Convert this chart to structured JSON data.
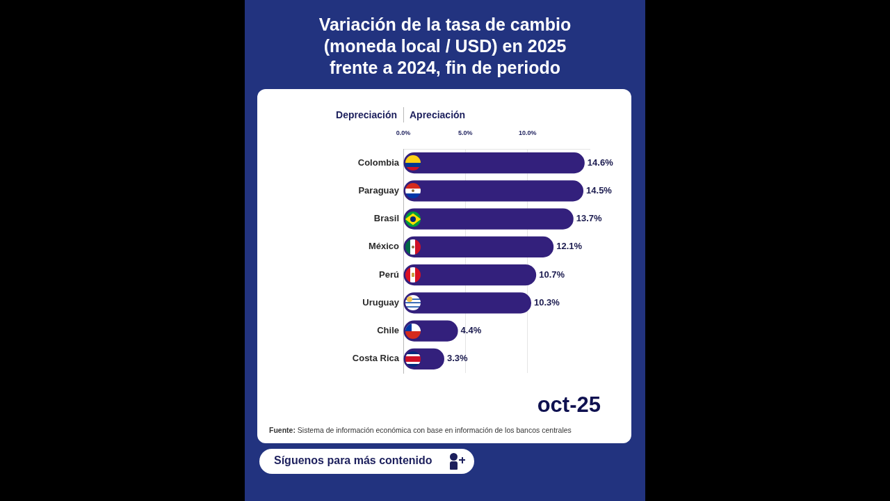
{
  "chart_data": {
    "type": "bar",
    "orientation": "horizontal",
    "title": "Variación de la tasa de cambio (moneda local / USD) en 2025 frente a 2024, fin de periodo",
    "categories": [
      "Colombia",
      "Paraguay",
      "Brasil",
      "México",
      "Perú",
      "Uruguay",
      "Chile",
      "Costa Rica"
    ],
    "values": [
      14.6,
      14.5,
      13.7,
      12.1,
      10.7,
      10.3,
      4.4,
      3.3
    ],
    "value_labels": [
      "14.6%",
      "14.5%",
      "13.7%",
      "12.1%",
      "10.7%",
      "10.3%",
      "4.4%",
      "3.3%"
    ],
    "color": "#33207c",
    "xlim": [
      0,
      15
    ],
    "xticks": [
      {
        "value": 0,
        "label": "0.0%"
      },
      {
        "value": 5,
        "label": "5.0%"
      },
      {
        "value": 10,
        "label": "10.0%"
      }
    ],
    "grid": "x",
    "annotations": [
      "Depreciación",
      "Apreciación",
      "oct-25",
      "Fuente: Sistema de información económica con base en información de los bancos centrales",
      "Síguenos para más contenido"
    ]
  }
}
